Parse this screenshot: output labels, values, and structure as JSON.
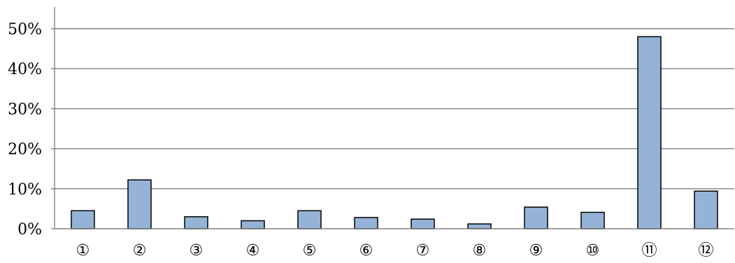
{
  "chart_data": {
    "type": "bar",
    "title": "",
    "xlabel": "",
    "ylabel": "",
    "categories": [
      "①",
      "②",
      "③",
      "④",
      "⑤",
      "⑥",
      "⑦",
      "⑧",
      "⑨",
      "⑩",
      "⑪",
      "⑫"
    ],
    "values": [
      4.5,
      12.2,
      3.0,
      2.0,
      4.5,
      2.8,
      2.4,
      1.2,
      5.4,
      4.1,
      48.0,
      9.4
    ],
    "ylim": [
      0,
      50
    ],
    "yticks": [
      0,
      10,
      20,
      30,
      40,
      50
    ],
    "ytick_labels": [
      "0%",
      "10%",
      "20%",
      "30%",
      "40%",
      "50%"
    ],
    "grid": true,
    "legend": "none",
    "colors": {
      "bar_fill": "#95B3D7",
      "bar_stroke": "#000000",
      "grid": "#808080"
    }
  }
}
